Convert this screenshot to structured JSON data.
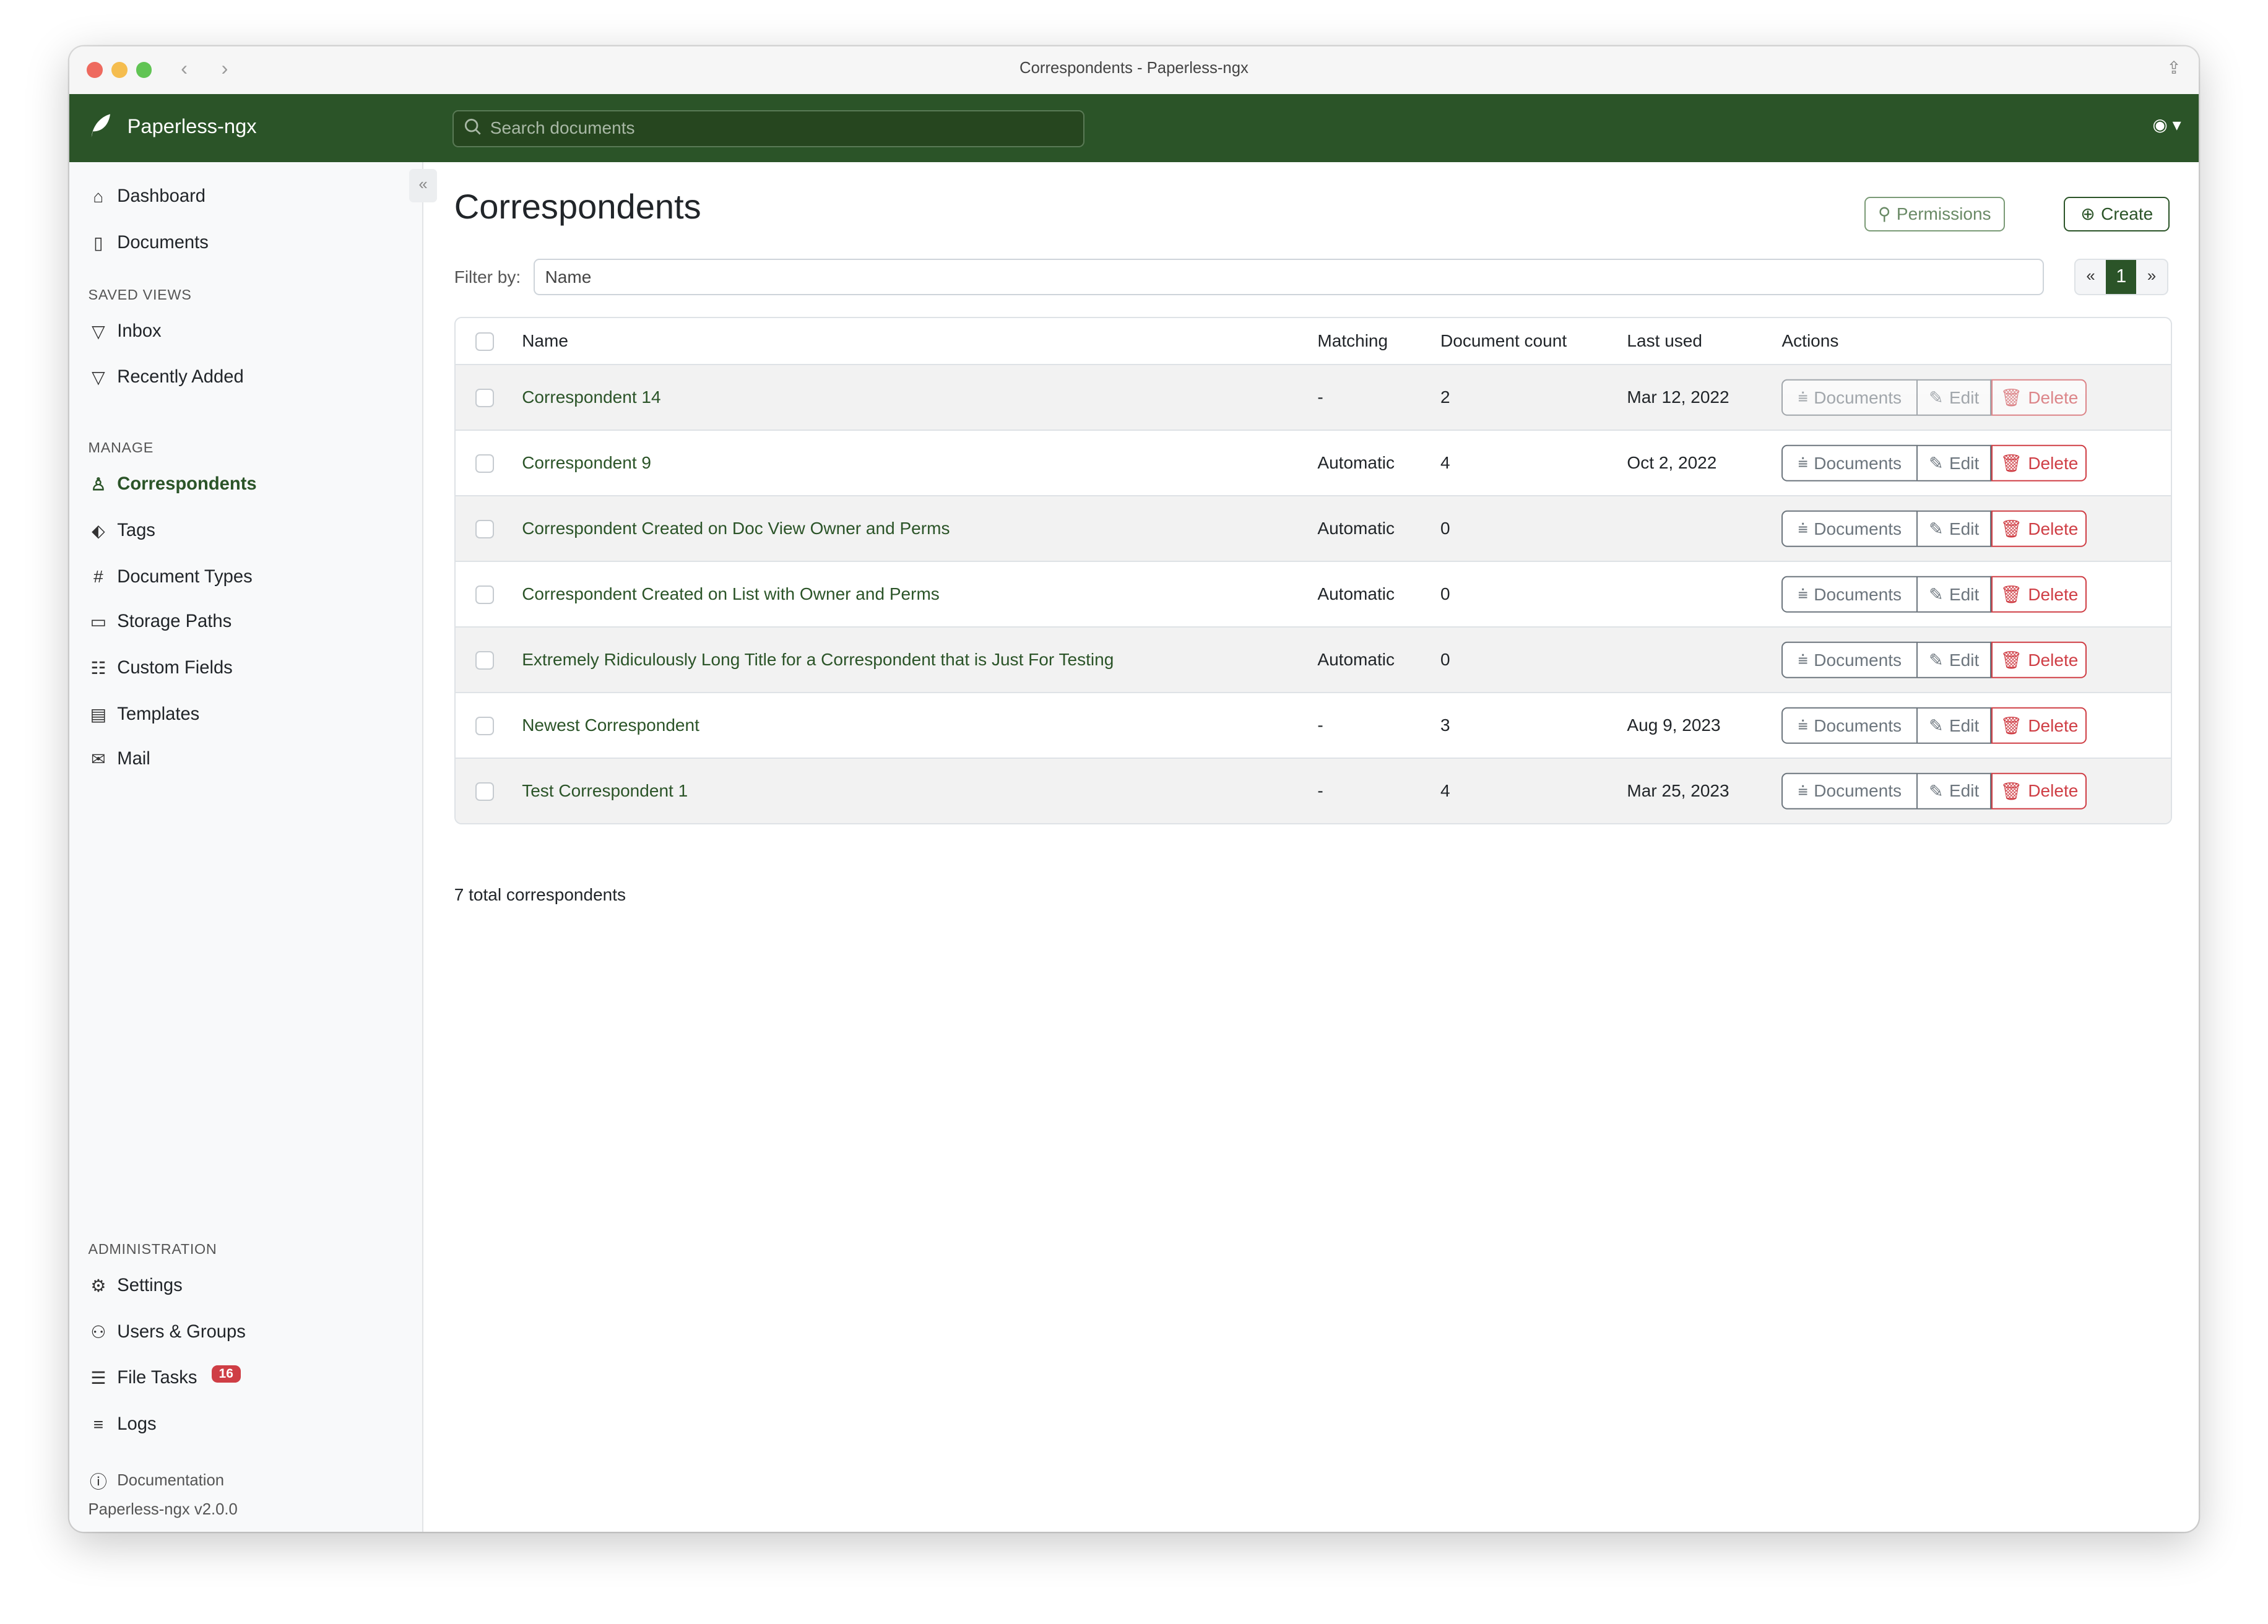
{
  "window": {
    "title": "Correspondents - Paperless-ngx"
  },
  "header": {
    "brand": "Paperless-ngx",
    "search_placeholder": "Search documents"
  },
  "sidebar": {
    "items": [
      {
        "label": "Dashboard",
        "icon": "house-icon"
      },
      {
        "label": "Documents",
        "icon": "files-icon"
      }
    ],
    "saved_views_heading": "SAVED VIEWS",
    "saved_views": [
      {
        "label": "Inbox",
        "icon": "funnel-icon"
      },
      {
        "label": "Recently Added",
        "icon": "funnel-icon"
      }
    ],
    "manage_heading": "MANAGE",
    "manage": [
      {
        "label": "Correspondents",
        "active": true
      },
      {
        "label": "Tags"
      },
      {
        "label": "Document Types"
      },
      {
        "label": "Storage Paths"
      },
      {
        "label": "Custom Fields"
      },
      {
        "label": "Templates"
      },
      {
        "label": "Mail"
      }
    ],
    "admin_heading": "ADMINISTRATION",
    "admin": [
      {
        "label": "Settings"
      },
      {
        "label": "Users & Groups"
      },
      {
        "label": "File Tasks",
        "badge": "16"
      },
      {
        "label": "Logs"
      }
    ],
    "documentation": "Documentation",
    "version": "Paperless-ngx v2.0.0"
  },
  "main": {
    "title": "Correspondents",
    "permissions_label": "Permissions",
    "create_label": "Create",
    "filter_label": "Filter by:",
    "filter_placeholder": "Name",
    "pager": {
      "prev": "«",
      "current": "1",
      "next": "»"
    },
    "columns": [
      "Name",
      "Matching",
      "Document count",
      "Last used",
      "Actions"
    ],
    "actions": {
      "documents": "Documents",
      "edit": "Edit",
      "delete": "Delete"
    },
    "rows": [
      {
        "name": "Correspondent 14",
        "matching": "-",
        "count": "2",
        "last_used": "Mar 12, 2022",
        "disabled": true
      },
      {
        "name": "Correspondent 9",
        "matching": "Automatic",
        "count": "4",
        "last_used": "Oct 2, 2022"
      },
      {
        "name": "Correspondent Created on Doc View Owner and Perms",
        "matching": "Automatic",
        "count": "0",
        "last_used": ""
      },
      {
        "name": "Correspondent Created on List with Owner and Perms",
        "matching": "Automatic",
        "count": "0",
        "last_used": ""
      },
      {
        "name": "Extremely Ridiculously Long Title for a Correspondent that is Just For Testing",
        "matching": "Automatic",
        "count": "0",
        "last_used": ""
      },
      {
        "name": "Newest Correspondent",
        "matching": "-",
        "count": "3",
        "last_used": "Aug 9, 2023"
      },
      {
        "name": "Test Correspondent 1",
        "matching": "-",
        "count": "4",
        "last_used": "Mar 25, 2023"
      }
    ],
    "total": "7 total correspondents"
  },
  "colors": {
    "brand": "#2b5428",
    "danger": "#cf3e45"
  }
}
